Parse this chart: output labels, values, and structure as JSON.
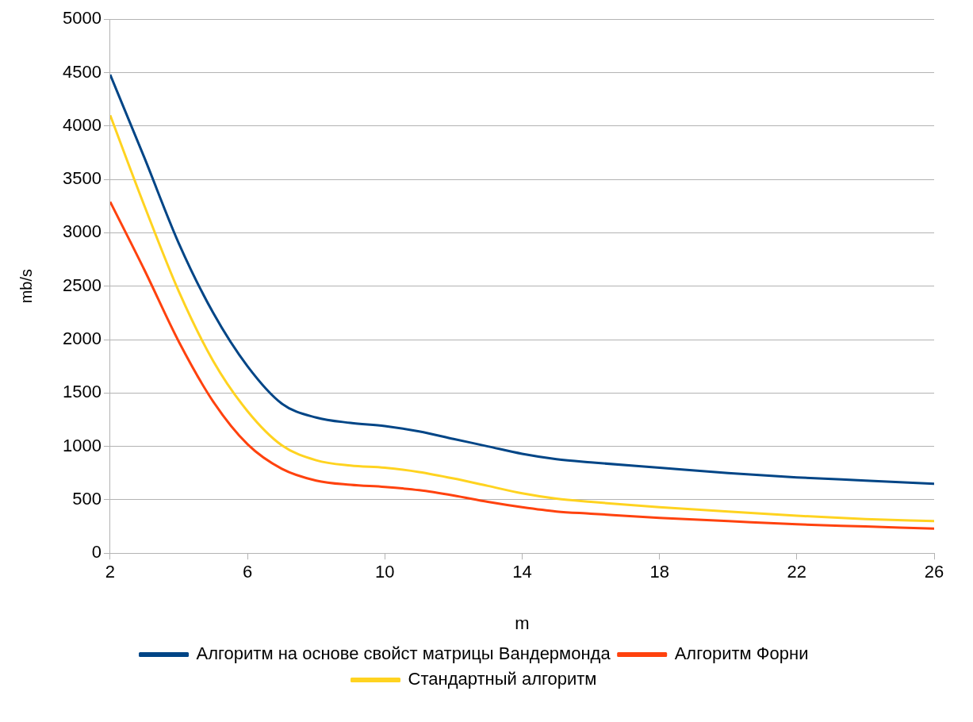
{
  "chart_data": {
    "type": "line",
    "xlabel": "m",
    "ylabel": "mb/s",
    "x": [
      2,
      3,
      4,
      5,
      6,
      7,
      8,
      9,
      10,
      11,
      12,
      13,
      14,
      15,
      16,
      18,
      20,
      22,
      24,
      26
    ],
    "series": [
      {
        "name": "Алгоритм на основе свойст матрицы Вандермонда",
        "color": "#004586",
        "values": [
          4480,
          3700,
          2900,
          2250,
          1750,
          1400,
          1270,
          1220,
          1190,
          1140,
          1070,
          1000,
          930,
          880,
          850,
          800,
          750,
          710,
          680,
          650
        ]
      },
      {
        "name": "Алгоритм Форни",
        "color": "#ff420e",
        "values": [
          3290,
          2650,
          1980,
          1420,
          1020,
          790,
          680,
          640,
          620,
          590,
          540,
          480,
          430,
          390,
          370,
          330,
          300,
          270,
          250,
          230
        ]
      },
      {
        "name": "Стандартный алгоритм",
        "color": "#ffd320",
        "values": [
          4100,
          3250,
          2450,
          1800,
          1330,
          1010,
          870,
          820,
          800,
          760,
          700,
          630,
          560,
          510,
          480,
          430,
          390,
          350,
          320,
          300
        ]
      }
    ],
    "xlim": [
      2,
      26
    ],
    "xticks": [
      2,
      6,
      10,
      14,
      18,
      22,
      26
    ],
    "ylim": [
      0,
      5000
    ],
    "yticks": [
      0,
      500,
      1000,
      1500,
      2000,
      2500,
      3000,
      3500,
      4000,
      4500,
      5000
    ],
    "grid": "y",
    "legend": "bottom",
    "marker": "none",
    "line_style": "solid"
  }
}
